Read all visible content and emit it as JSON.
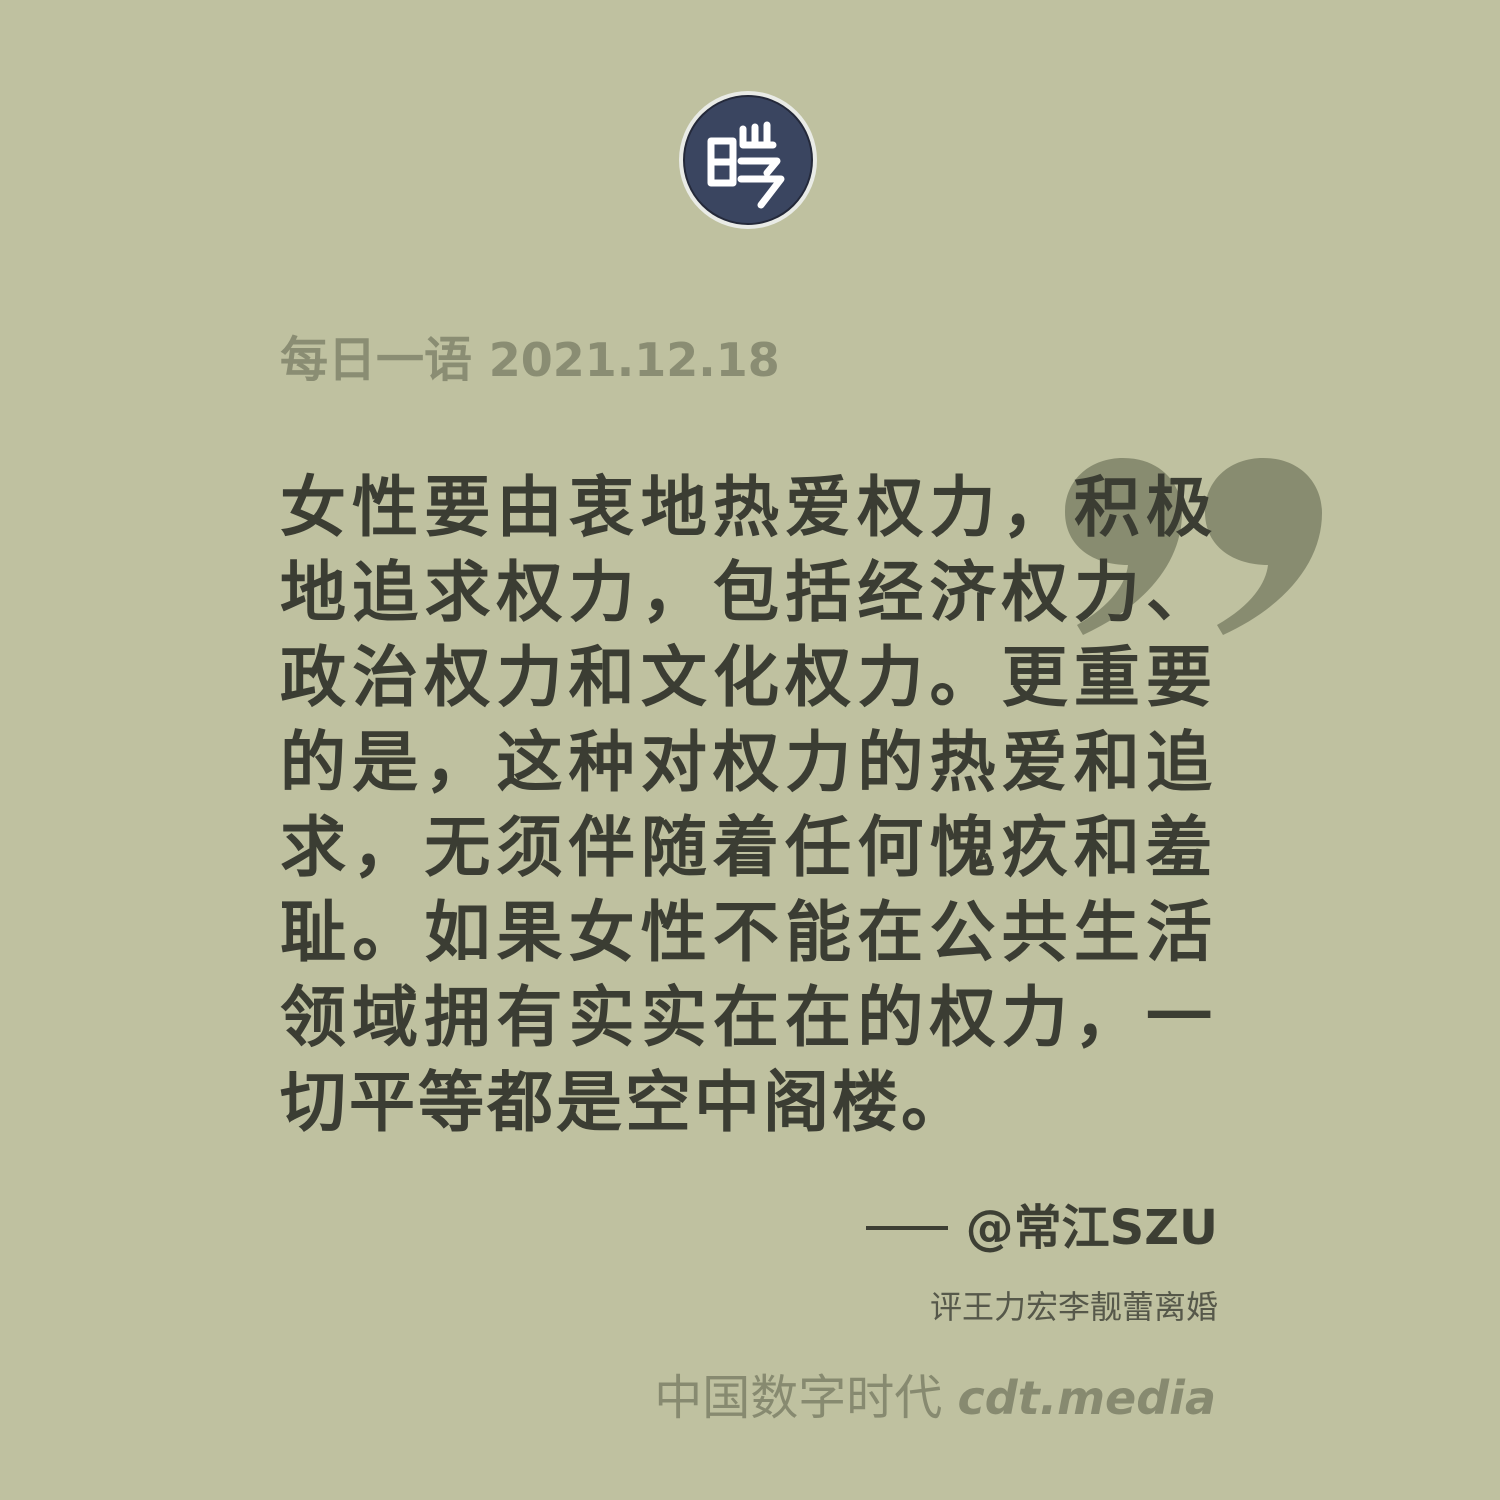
{
  "header": {
    "label": "每日一语",
    "date": "2021.12.18"
  },
  "logo": {
    "glyph": "暏",
    "icon": "circular-seal-logo"
  },
  "quote": {
    "text": "女性要由衷地热爱权力，积极地追求权力，包括经济权力、政治权力和文化权力。更重要的是，这种对权力的热爱和追求，无须伴随着任何愧疚和羞耻。如果女性不能在公共生活领域拥有实实在在的权力，一切平等都是空中阁楼。"
  },
  "attribution": {
    "author": "@常江SZU",
    "source": "评王力宏李靓蕾离婚"
  },
  "footer": {
    "brand": "中国数字时代",
    "site": "cdt.media"
  },
  "colors": {
    "background": "#bfc1a0",
    "quote_text": "#3b3d33",
    "muted": "#8a8d73",
    "quote_mark": "#888c70",
    "logo_fill": "#3a4560"
  }
}
